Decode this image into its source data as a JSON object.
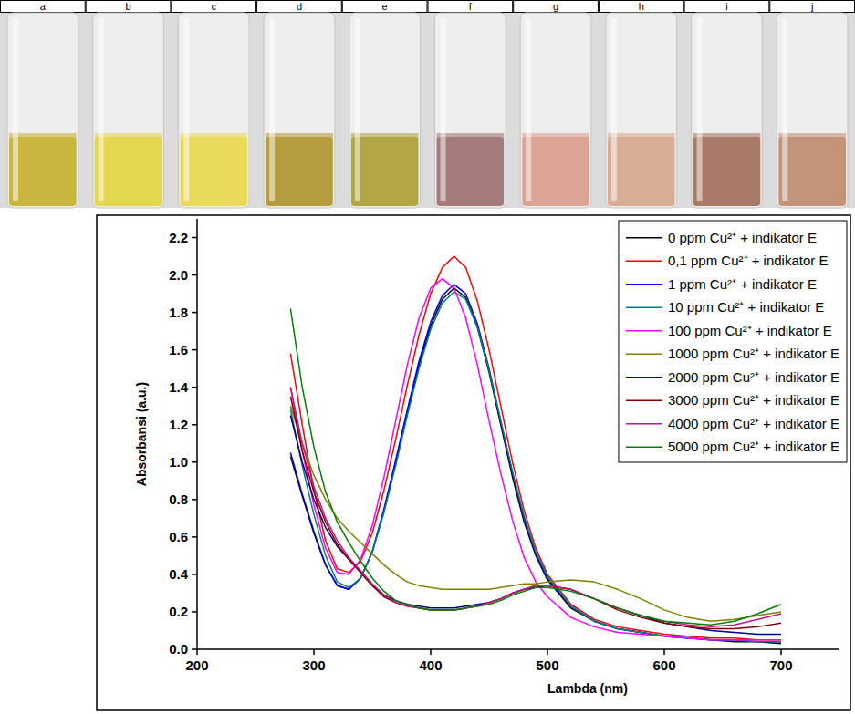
{
  "vials": {
    "labels": [
      "a",
      "b",
      "c",
      "d",
      "e",
      "f",
      "g",
      "h",
      "i",
      "j"
    ],
    "colors": [
      "#c9b640",
      "#e2d74e",
      "#e9da5c",
      "#b59c3e",
      "#b3a645",
      "#a57a7a",
      "#dca494",
      "#d8ad95",
      "#a97a68",
      "#c4947a"
    ]
  },
  "chart_data": {
    "type": "line",
    "xlabel": "Lambda (nm)",
    "ylabel": "Absorbansi (a.u.)",
    "x": [
      280,
      290,
      300,
      310,
      320,
      330,
      340,
      350,
      360,
      370,
      380,
      390,
      400,
      410,
      420,
      430,
      440,
      450,
      460,
      470,
      480,
      490,
      500,
      520,
      540,
      560,
      580,
      600,
      620,
      640,
      660,
      680,
      700
    ],
    "xlim": [
      200,
      750
    ],
    "xticks": [
      200,
      300,
      400,
      500,
      600,
      700
    ],
    "ylim": [
      0,
      2.3
    ],
    "yticks": [
      {
        "value": 0,
        "label": "0.0"
      },
      0.2,
      0.4,
      0.6,
      0.8,
      {
        "value": 1,
        "label": "1.0"
      },
      1.2,
      1.4,
      1.6,
      1.8,
      {
        "value": 2,
        "label": "2.0"
      },
      2.2
    ],
    "legend": "upper right",
    "series": [
      {
        "name": "0 ppm Cu²⁺ + indikator E",
        "color": "#000000",
        "values": [
          1.03,
          0.82,
          0.62,
          0.45,
          0.34,
          0.32,
          0.38,
          0.52,
          0.74,
          1.0,
          1.27,
          1.52,
          1.73,
          1.87,
          1.93,
          1.88,
          1.72,
          1.48,
          1.2,
          0.92,
          0.68,
          0.5,
          0.37,
          0.22,
          0.15,
          0.11,
          0.09,
          0.07,
          0.06,
          0.05,
          0.04,
          0.04,
          0.03
        ]
      },
      {
        "name": "0,1 ppm Cu²⁺ + indikator E",
        "color": "#ff0000",
        "values": [
          1.58,
          1.2,
          0.85,
          0.58,
          0.43,
          0.41,
          0.47,
          0.62,
          0.85,
          1.12,
          1.41,
          1.68,
          1.9,
          2.04,
          2.1,
          2.04,
          1.86,
          1.6,
          1.3,
          1.0,
          0.74,
          0.54,
          0.4,
          0.24,
          0.16,
          0.12,
          0.1,
          0.08,
          0.07,
          0.06,
          0.06,
          0.05,
          0.05
        ]
      },
      {
        "name": "1 ppm Cu²⁺ + indikator E",
        "color": "#0000ff",
        "values": [
          1.05,
          0.83,
          0.63,
          0.45,
          0.34,
          0.32,
          0.38,
          0.52,
          0.75,
          1.01,
          1.28,
          1.54,
          1.75,
          1.89,
          1.95,
          1.9,
          1.74,
          1.5,
          1.22,
          0.94,
          0.7,
          0.51,
          0.38,
          0.23,
          0.15,
          0.11,
          0.09,
          0.07,
          0.06,
          0.05,
          0.05,
          0.04,
          0.04
        ]
      },
      {
        "name": "10 ppm Cu²⁺ + indikator E",
        "color": "#008080",
        "values": [
          1.28,
          0.98,
          0.72,
          0.5,
          0.36,
          0.33,
          0.38,
          0.52,
          0.73,
          0.98,
          1.25,
          1.5,
          1.71,
          1.85,
          1.91,
          1.87,
          1.72,
          1.49,
          1.22,
          0.95,
          0.71,
          0.52,
          0.39,
          0.23,
          0.15,
          0.11,
          0.09,
          0.07,
          0.06,
          0.05,
          0.05,
          0.04,
          0.04
        ]
      },
      {
        "name": "100 ppm Cu²⁺ + indikator E",
        "color": "#ff00ff",
        "values": [
          1.4,
          1.06,
          0.77,
          0.54,
          0.41,
          0.4,
          0.48,
          0.66,
          0.92,
          1.22,
          1.52,
          1.77,
          1.93,
          1.98,
          1.93,
          1.77,
          1.52,
          1.22,
          0.94,
          0.69,
          0.49,
          0.36,
          0.28,
          0.17,
          0.12,
          0.09,
          0.08,
          0.07,
          0.06,
          0.05,
          0.05,
          0.05,
          0.05
        ]
      },
      {
        "name": "1000 ppm Cu²⁺ + indikator E",
        "color": "#808000",
        "values": [
          1.3,
          1.1,
          0.93,
          0.8,
          0.7,
          0.63,
          0.57,
          0.51,
          0.45,
          0.4,
          0.36,
          0.34,
          0.33,
          0.32,
          0.32,
          0.32,
          0.32,
          0.32,
          0.33,
          0.34,
          0.35,
          0.35,
          0.36,
          0.37,
          0.36,
          0.32,
          0.27,
          0.21,
          0.17,
          0.15,
          0.16,
          0.18,
          0.2
        ]
      },
      {
        "name": "2000 ppm Cu²⁺ + indikator E",
        "color": "#000080",
        "values": [
          1.25,
          1.0,
          0.8,
          0.65,
          0.55,
          0.48,
          0.41,
          0.34,
          0.29,
          0.26,
          0.24,
          0.23,
          0.22,
          0.22,
          0.22,
          0.23,
          0.24,
          0.25,
          0.27,
          0.3,
          0.32,
          0.33,
          0.34,
          0.32,
          0.27,
          0.22,
          0.18,
          0.14,
          0.12,
          0.1,
          0.09,
          0.08,
          0.08
        ]
      },
      {
        "name": "3000 ppm Cu²⁺ + indikator E",
        "color": "#800000",
        "values": [
          1.35,
          1.06,
          0.84,
          0.68,
          0.56,
          0.48,
          0.41,
          0.34,
          0.28,
          0.25,
          0.23,
          0.22,
          0.21,
          0.21,
          0.21,
          0.22,
          0.23,
          0.25,
          0.27,
          0.3,
          0.32,
          0.34,
          0.34,
          0.32,
          0.27,
          0.21,
          0.17,
          0.14,
          0.12,
          0.11,
          0.11,
          0.12,
          0.14
        ]
      },
      {
        "name": "4000 ppm Cu²⁺ + indikator E",
        "color": "#c71585",
        "values": [
          1.4,
          1.1,
          0.87,
          0.7,
          0.58,
          0.49,
          0.42,
          0.35,
          0.29,
          0.25,
          0.23,
          0.22,
          0.21,
          0.21,
          0.21,
          0.22,
          0.23,
          0.25,
          0.27,
          0.3,
          0.32,
          0.34,
          0.34,
          0.32,
          0.27,
          0.22,
          0.18,
          0.15,
          0.13,
          0.12,
          0.13,
          0.16,
          0.19
        ]
      },
      {
        "name": "5000 ppm Cu²⁺ + indikator E",
        "color": "#008000",
        "values": [
          1.82,
          1.4,
          1.08,
          0.84,
          0.68,
          0.57,
          0.47,
          0.38,
          0.31,
          0.26,
          0.24,
          0.22,
          0.21,
          0.21,
          0.21,
          0.22,
          0.23,
          0.24,
          0.26,
          0.29,
          0.31,
          0.33,
          0.33,
          0.31,
          0.27,
          0.22,
          0.18,
          0.15,
          0.14,
          0.13,
          0.15,
          0.19,
          0.24
        ]
      }
    ]
  }
}
